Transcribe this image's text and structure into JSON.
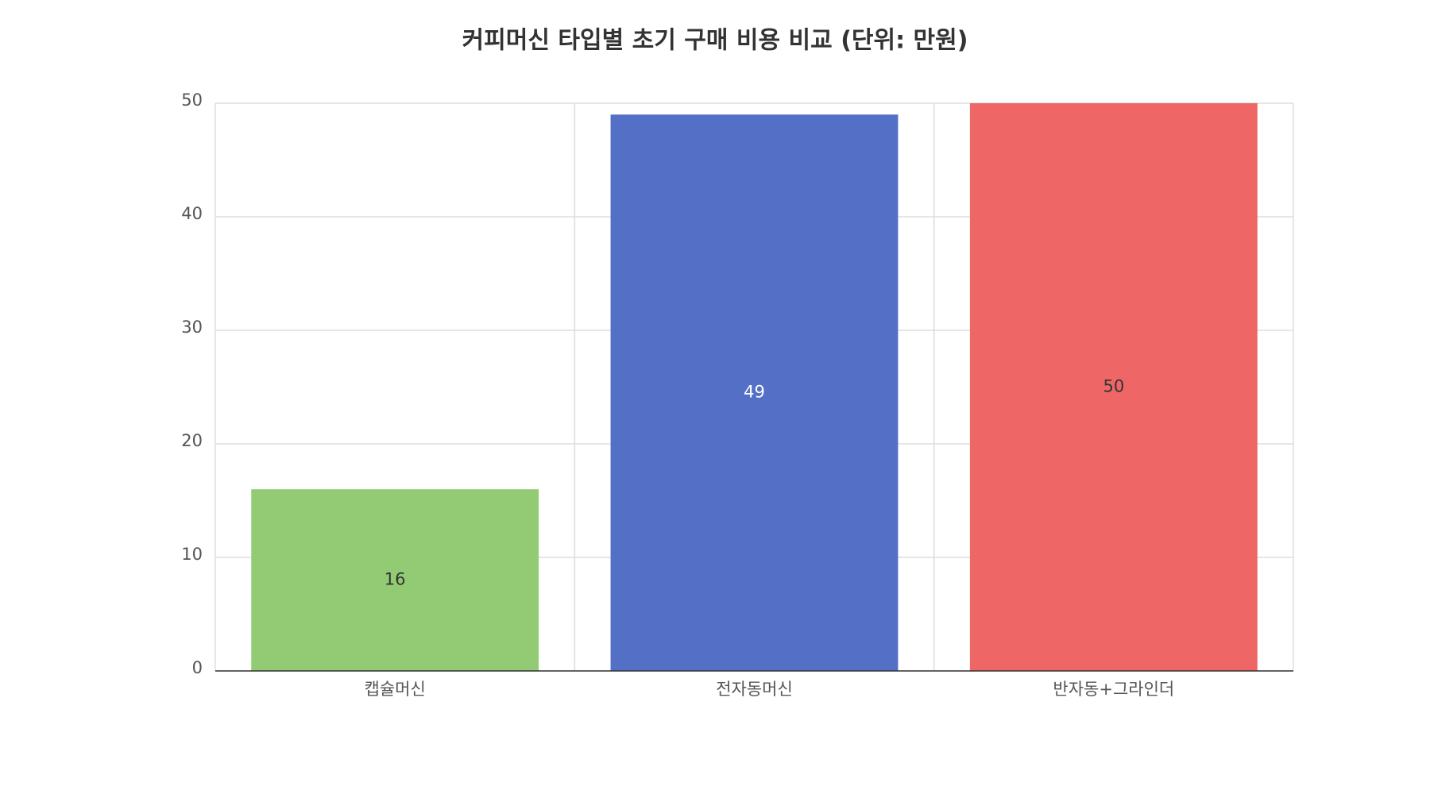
{
  "chart_data": {
    "type": "bar",
    "title": "커피머신 타입별 초기 구매 비용 비교 (단위: 만원)",
    "categories": [
      "캡슐머신",
      "전자동머신",
      "반자동+그라인더"
    ],
    "values": [
      16,
      49,
      50
    ],
    "colors": [
      "#93cb74",
      "#5470c6",
      "#ee6666"
    ],
    "ylim": [
      0,
      50
    ],
    "yticks": [
      0,
      10,
      20,
      30,
      40,
      50
    ],
    "grid": true
  }
}
